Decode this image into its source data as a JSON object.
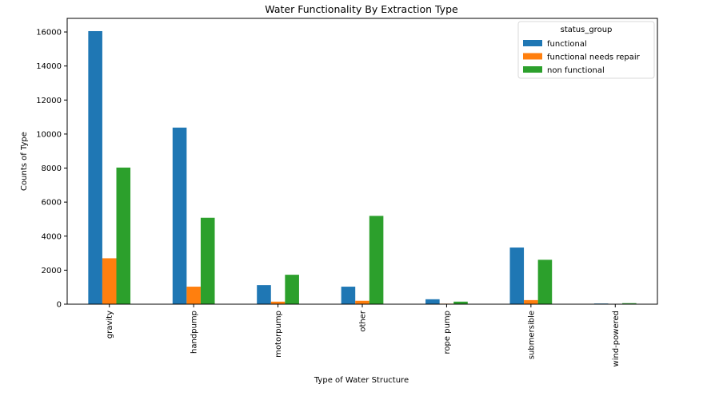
{
  "chart_data": {
    "type": "bar",
    "title": "Water Functionality By Extraction Type",
    "xlabel": "Type of Water Structure",
    "ylabel": "Counts of Type",
    "categories": [
      "gravity",
      "handpump",
      "motorpump",
      "other",
      "rope pump",
      "submersible",
      "wind-powered"
    ],
    "series": [
      {
        "name": "functional",
        "color": "#1f77b4",
        "values": [
          16050,
          10380,
          1120,
          1030,
          290,
          3330,
          40
        ]
      },
      {
        "name": "functional needs repair",
        "color": "#ff7f0e",
        "values": [
          2700,
          1030,
          150,
          200,
          30,
          240,
          20
        ]
      },
      {
        "name": "non functional",
        "color": "#2ca02c",
        "values": [
          8030,
          5080,
          1730,
          5190,
          150,
          2610,
          60
        ]
      }
    ],
    "ylim": [
      0,
      16800
    ],
    "yticks": [
      0,
      2000,
      4000,
      6000,
      8000,
      10000,
      12000,
      14000,
      16000
    ],
    "legend": {
      "title": "status_group",
      "position": "top-right"
    },
    "grid": false
  }
}
